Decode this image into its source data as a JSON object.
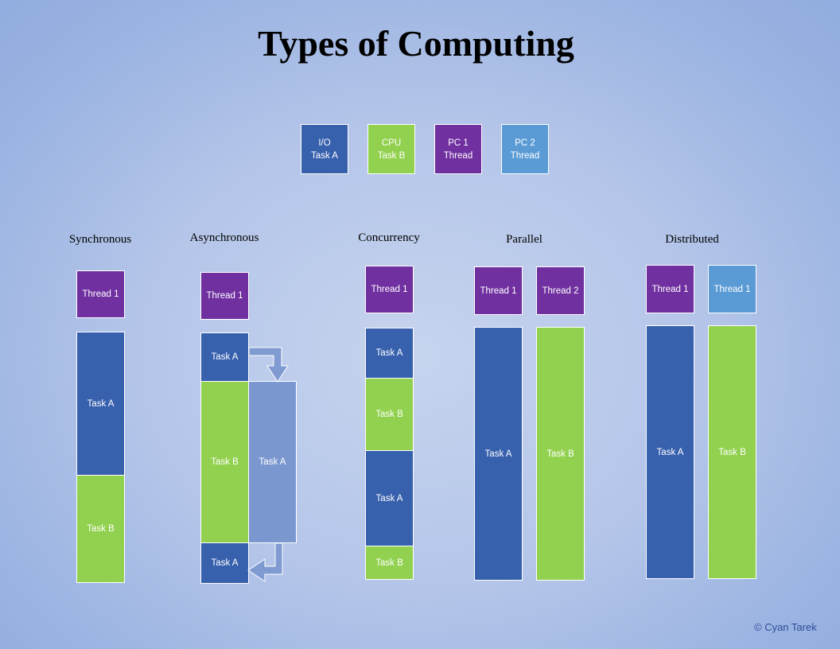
{
  "title": "Types of Computing",
  "legend": {
    "io": {
      "line1": "I/O",
      "line2": "Task A"
    },
    "cpu": {
      "line1": "CPU",
      "line2": "Task B"
    },
    "pc1": {
      "line1": "PC 1",
      "line2": "Thread"
    },
    "pc2": {
      "line1": "PC 2",
      "line2": "Thread"
    }
  },
  "sections": {
    "synchronous": {
      "heading": "Synchronous",
      "thread": "Thread 1",
      "blocks": [
        "Task A",
        "Task B"
      ]
    },
    "asynchronous": {
      "heading": "Asynchronous",
      "thread": "Thread 1",
      "blocks": [
        "Task A",
        "Task B",
        "Task A",
        "Task A"
      ]
    },
    "concurrency": {
      "heading": "Concurrency",
      "thread": "Thread 1",
      "blocks": [
        "Task A",
        "Task B",
        "Task A",
        "Task B"
      ]
    },
    "parallel": {
      "heading": "Parallel",
      "threads": [
        "Thread 1",
        "Thread 2"
      ],
      "blocks": [
        "Task A",
        "Task B"
      ]
    },
    "distributed": {
      "heading": "Distributed",
      "threads": [
        "Thread 1",
        "Thread 1"
      ],
      "blocks": [
        "Task A",
        "Task B"
      ]
    }
  },
  "copyright": "© Cyan Tarek",
  "colors": {
    "io_task_a": "#3760ad",
    "cpu_task_b": "#92d14f",
    "pc1_thread": "#7030a0",
    "pc2_thread": "#5b9bd5"
  }
}
